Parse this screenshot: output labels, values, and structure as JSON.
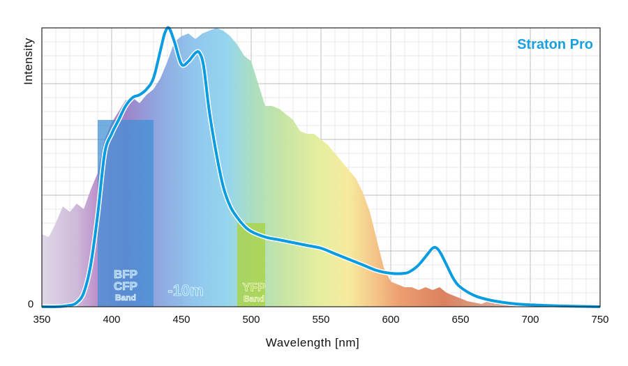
{
  "chart_data": {
    "type": "line",
    "title": "",
    "brand_label": "Straton Pro",
    "xlabel": "Wavelength [nm]",
    "ylabel": "Intensity",
    "xlim": [
      350,
      750
    ],
    "ylim": [
      0,
      100
    ],
    "x_ticks": [
      350,
      400,
      450,
      500,
      550,
      600,
      650,
      700,
      750
    ],
    "y_tick_zero": "0",
    "grid": true,
    "colors": {
      "line": "#0a9ce0",
      "brand": "#1aa0e0",
      "bfp_band": "#3f8fd6",
      "yfp_band": "#a9d23c",
      "grid_major": "#bdbdbd",
      "grid_minor": "#e2e2e2"
    },
    "background_spectrum": {
      "name": "",
      "x": [
        350,
        355,
        360,
        365,
        370,
        375,
        380,
        385,
        390,
        395,
        400,
        405,
        410,
        415,
        420,
        425,
        430,
        435,
        440,
        445,
        450,
        455,
        460,
        465,
        470,
        475,
        480,
        485,
        490,
        495,
        500,
        505,
        510,
        515,
        520,
        525,
        530,
        535,
        540,
        545,
        550,
        555,
        560,
        565,
        570,
        575,
        580,
        585,
        590,
        595,
        600,
        605,
        610,
        615,
        620,
        625,
        630,
        635,
        640,
        645,
        650,
        655,
        660,
        665,
        670,
        675,
        680,
        685,
        690,
        695,
        700,
        710,
        720,
        730,
        740,
        750
      ],
      "y": [
        26,
        25,
        30,
        36,
        34,
        37,
        35,
        42,
        48,
        60,
        66,
        70,
        74,
        75,
        73,
        76,
        78,
        82,
        88,
        95,
        97,
        98,
        96,
        98,
        99,
        100,
        99,
        97,
        94,
        90,
        88,
        80,
        72,
        72,
        71,
        69,
        67,
        63,
        62,
        62,
        60,
        58,
        55,
        52,
        49,
        46,
        41,
        34,
        24,
        14,
        9,
        8,
        7,
        7,
        6,
        7,
        6,
        7,
        5,
        4,
        3,
        2,
        1.5,
        1,
        2,
        1,
        2,
        1,
        1.5,
        0.5,
        0,
        0,
        0,
        0,
        0,
        0
      ]
    },
    "series": [
      {
        "name": "",
        "x": [
          350,
          360,
          370,
          375,
          380,
          385,
          390,
          395,
          400,
          405,
          410,
          415,
          420,
          425,
          430,
          435,
          438,
          441,
          445,
          450,
          455,
          460,
          463,
          466,
          470,
          475,
          480,
          485,
          490,
          495,
          500,
          510,
          520,
          530,
          540,
          550,
          560,
          570,
          580,
          590,
          600,
          610,
          615,
          620,
          625,
          630,
          633,
          636,
          640,
          645,
          650,
          660,
          670,
          680,
          690,
          700,
          720,
          750
        ],
        "y": [
          0,
          0,
          0.5,
          1.5,
          5,
          15,
          33,
          55,
          62,
          67,
          72,
          75,
          76,
          78,
          82,
          92,
          98,
          100,
          95,
          87,
          88,
          91,
          91,
          86,
          70,
          55,
          43,
          36,
          32,
          29,
          27,
          25,
          24,
          23,
          22,
          21,
          19,
          17,
          15,
          13,
          12,
          12,
          13,
          15,
          18,
          21,
          21,
          19,
          15,
          10,
          7,
          4,
          2.5,
          1.6,
          1,
          0.7,
          0.3,
          0
        ]
      }
    ],
    "bands": [
      {
        "from": 390,
        "to": 430,
        "top": 67,
        "labels": [
          "BFP",
          "CFP",
          "Band"
        ]
      },
      {
        "from": 490,
        "to": 510,
        "top": 30,
        "labels": [
          "YFP",
          "Band"
        ]
      }
    ],
    "annotations": [
      {
        "text": "-10m",
        "x": 456,
        "y": 4
      }
    ]
  }
}
